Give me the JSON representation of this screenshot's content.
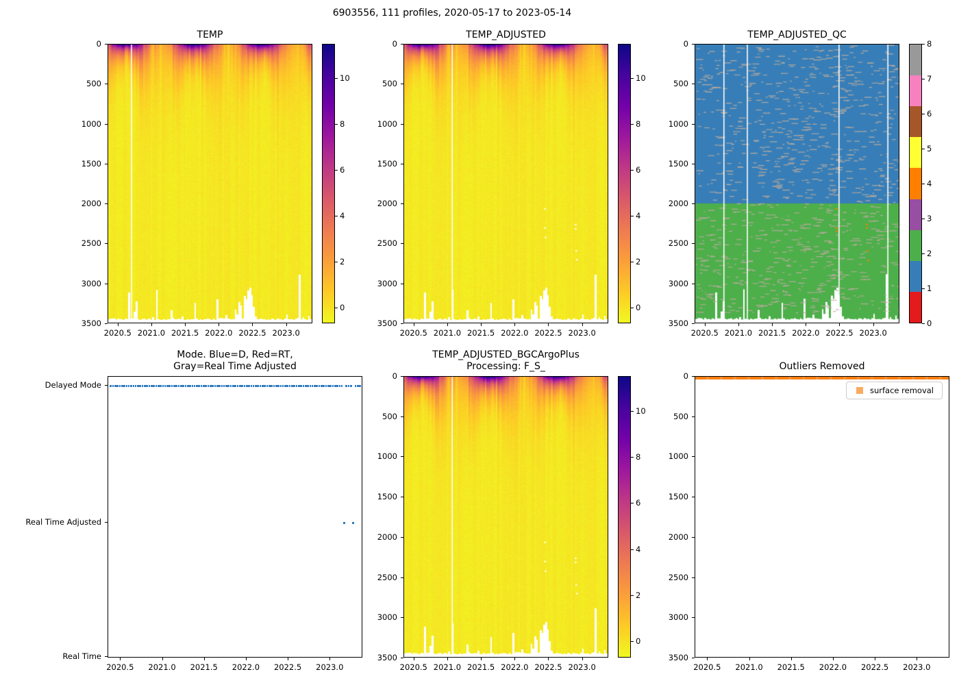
{
  "suptitle": "6903556, 111 profiles, 2020-05-17 to 2023-05-14",
  "time_axis": {
    "range": [
      2020.35,
      2023.39
    ],
    "ticks": [
      2020.5,
      2021.0,
      2021.5,
      2022.0,
      2022.5,
      2023.0
    ],
    "tick_labels": [
      "2020.5",
      "2021.0",
      "2021.5",
      "2022.0",
      "2022.5",
      "2023.0"
    ]
  },
  "depth_axis": {
    "range": [
      0,
      3500
    ],
    "ticks": [
      0,
      500,
      1000,
      1500,
      2000,
      2500,
      3000,
      3500
    ],
    "tick_labels": [
      "0",
      "500",
      "1000",
      "1500",
      "2000",
      "2500",
      "3000",
      "3500"
    ]
  },
  "profile_model": {
    "n_profiles": 111,
    "time_start": 2020.37,
    "time_end": 2023.36,
    "deep_temp_c": -0.3,
    "surface_temp_summer_c": 11,
    "surface_temp_winter_c": 1.5,
    "max_depth_typical_m": 3460,
    "shallow_casts": [
      [
        2020.67,
        3120
      ],
      [
        2020.75,
        3360
      ],
      [
        2020.79,
        3230
      ],
      [
        2021.02,
        3430
      ],
      [
        2021.07,
        3080
      ],
      [
        2021.3,
        3340
      ],
      [
        2021.45,
        3420
      ],
      [
        2021.66,
        3250
      ],
      [
        2021.97,
        3200
      ],
      [
        2022.12,
        3400
      ],
      [
        2022.25,
        3330
      ],
      [
        2022.28,
        3390
      ],
      [
        2022.31,
        3240
      ],
      [
        2022.34,
        3280
      ],
      [
        2022.37,
        3160
      ],
      [
        2022.4,
        3200
      ],
      [
        2022.43,
        3090
      ],
      [
        2022.46,
        3060
      ],
      [
        2022.49,
        3150
      ],
      [
        2022.52,
        3300
      ],
      [
        2022.55,
        3420
      ],
      [
        2023.02,
        3390
      ],
      [
        2023.21,
        2890
      ],
      [
        2023.24,
        3430
      ],
      [
        2023.33,
        3410
      ]
    ]
  },
  "colormap_plasma": [
    "#0d0887",
    "#46039f",
    "#7201a8",
    "#9c179e",
    "#bd3786",
    "#d8576b",
    "#ed7953",
    "#fb9f3a",
    "#fdca26",
    "#f0f921"
  ],
  "chart_data": [
    {
      "id": "temp",
      "type": "heatmap",
      "title": "TEMP",
      "x_range": [
        2020.35,
        2023.39
      ],
      "y_range": [
        3500,
        0
      ],
      "colorbar": {
        "colormap": "plasma_r",
        "vmin": -0.7,
        "vmax": 11.5,
        "ticks": [
          0,
          2,
          4,
          6,
          8,
          10
        ],
        "tick_labels": [
          "0",
          "2",
          "4",
          "6",
          "8",
          "10"
        ]
      },
      "missing_profile_lines": [
        2020.69
      ],
      "masked_points": []
    },
    {
      "id": "temp_adjusted",
      "type": "heatmap",
      "title": "TEMP_ADJUSTED",
      "x_range": [
        2020.35,
        2023.39
      ],
      "y_range": [
        3500,
        0
      ],
      "colorbar": {
        "colormap": "plasma_r",
        "vmin": -0.7,
        "vmax": 11.5,
        "ticks": [
          0,
          2,
          4,
          6,
          8,
          10
        ],
        "tick_labels": [
          "0",
          "2",
          "4",
          "6",
          "8",
          "10"
        ]
      },
      "missing_profile_lines": [
        2021.06
      ],
      "masked_points": [
        [
          2022.44,
          2060
        ],
        [
          2022.44,
          2300
        ],
        [
          2022.45,
          2420
        ],
        [
          2022.9,
          2260
        ],
        [
          2022.9,
          2310
        ],
        [
          2022.91,
          2590
        ],
        [
          2022.92,
          2700
        ]
      ]
    },
    {
      "id": "temp_adjusted_qc",
      "type": "heatmap",
      "title": "TEMP_ADJUSTED_QC",
      "x_range": [
        2020.35,
        2023.39
      ],
      "y_range": [
        3500,
        0
      ],
      "palette": {
        "0": "#e41a1c",
        "1": "#377eb8",
        "2": "#4daf4a",
        "3": "#984ea3",
        "4": "#ff7f00",
        "5": "#ffff33",
        "6": "#a65628",
        "7": "#f781bf",
        "8": "#999999"
      },
      "colorbar": {
        "ticks": [
          0,
          1,
          2,
          3,
          4,
          5,
          6,
          7,
          8
        ],
        "tick_labels": [
          "0",
          "1",
          "2",
          "3",
          "4",
          "5",
          "6",
          "7",
          "8"
        ]
      },
      "regions": [
        {
          "qc": 1,
          "color": "#377eb8",
          "depth_from": 0,
          "depth_to": 2000
        },
        {
          "qc": 2,
          "color": "#4daf4a",
          "depth_from": 2000,
          "depth_to": 3460
        }
      ],
      "speckle_color": "#b9ab9e",
      "qc4_points": [
        [
          2022.44,
          2060
        ],
        [
          2022.44,
          2300
        ],
        [
          2022.45,
          2340
        ],
        [
          2022.9,
          2255
        ],
        [
          2022.9,
          2300
        ],
        [
          2022.91,
          2590
        ],
        [
          2022.92,
          2710
        ]
      ],
      "missing_profile_lines": [
        2020.77,
        2021.12,
        2022.49,
        2023.22
      ]
    },
    {
      "id": "mode",
      "type": "scatter",
      "title": "Mode. Blue=D, Red=RT,\nGray=Real Time Adjusted",
      "title_lines": [
        "Mode. Blue=D, Red=RT,",
        "Gray=Real Time Adjusted"
      ],
      "categories": [
        "Delayed Mode",
        "Real Time Adjusted",
        "Real Time"
      ],
      "x_range": [
        2020.35,
        2023.39
      ],
      "dot_color": "#2f7bbf",
      "n_delayed": 109,
      "real_time_adjusted_times": [
        2023.17,
        2023.28
      ]
    },
    {
      "id": "temp_adjusted_bgcargoplus",
      "type": "heatmap",
      "title": "TEMP_ADJUSTED_BGCArgoPlus\nProcessing: F_S_",
      "title_lines": [
        "TEMP_ADJUSTED_BGCArgoPlus",
        "Processing: F_S_"
      ],
      "x_range": [
        2020.35,
        2023.39
      ],
      "y_range": [
        3500,
        0
      ],
      "colorbar": {
        "colormap": "plasma_r",
        "vmin": -0.7,
        "vmax": 11.5,
        "ticks": [
          0,
          2,
          4,
          6,
          8,
          10
        ],
        "tick_labels": [
          "0",
          "2",
          "4",
          "6",
          "8",
          "10"
        ]
      },
      "missing_profile_lines": [
        2021.06
      ],
      "masked_points": [
        [
          2022.44,
          2060
        ],
        [
          2022.44,
          2300
        ],
        [
          2022.45,
          2420
        ],
        [
          2022.9,
          2260
        ],
        [
          2022.9,
          2310
        ],
        [
          2022.91,
          2590
        ],
        [
          2022.92,
          2700
        ]
      ]
    },
    {
      "id": "outliers_removed",
      "type": "heatmap",
      "title": "Outliers Removed",
      "x_range": [
        2020.35,
        2023.39
      ],
      "y_range": [
        3500,
        0
      ],
      "legend": {
        "label": "surface removal",
        "marker_color": "#fbab60"
      },
      "band": {
        "depth_from": 0,
        "depth_to": 40,
        "color": "#ff7f0e"
      }
    }
  ]
}
